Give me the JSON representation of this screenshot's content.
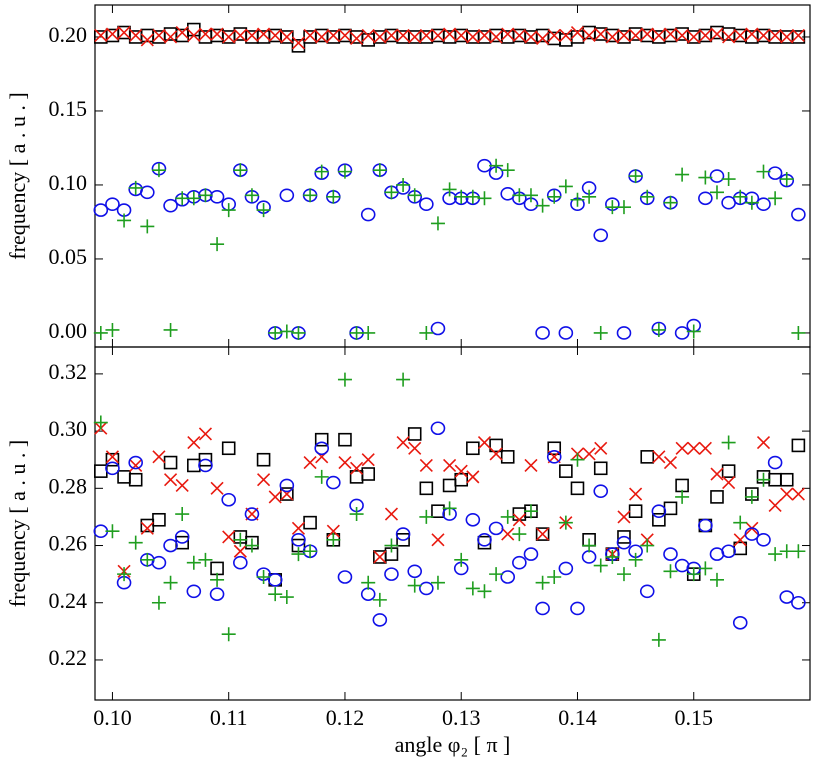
{
  "chart_data": [
    {
      "type": "scatter",
      "ylabel": "frequency [ a . u . ]",
      "x": [
        0.099,
        0.1,
        0.101,
        0.102,
        0.103,
        0.104,
        0.105,
        0.106,
        0.107,
        0.108,
        0.109,
        0.11,
        0.111,
        0.112,
        0.113,
        0.114,
        0.115,
        0.116,
        0.117,
        0.118,
        0.119,
        0.12,
        0.121,
        0.122,
        0.123,
        0.124,
        0.125,
        0.126,
        0.127,
        0.128,
        0.129,
        0.13,
        0.131,
        0.132,
        0.133,
        0.134,
        0.135,
        0.136,
        0.137,
        0.138,
        0.139,
        0.14,
        0.141,
        0.142,
        0.143,
        0.144,
        0.145,
        0.146,
        0.147,
        0.148,
        0.149,
        0.15,
        0.151,
        0.152,
        0.153,
        0.154,
        0.155,
        0.156,
        0.157,
        0.158,
        0.159
      ],
      "xlim": [
        0.0985,
        0.16
      ],
      "ylim": [
        -0.0095,
        0.2216
      ],
      "yticks": [
        {
          "value": 0,
          "label": "0.00"
        },
        0.05,
        {
          "value": 0.1,
          "label": "0.10"
        },
        0.15,
        {
          "value": 0.2,
          "label": "0.20"
        }
      ],
      "series": [
        {
          "marker": "square",
          "color": "#000000",
          "values": [
            0.2,
            0.201,
            0.203,
            0.2,
            0.201,
            0.2,
            0.202,
            0.201,
            0.205,
            0.2,
            0.201,
            0.2,
            0.202,
            0.2,
            0.2,
            0.201,
            0.2,
            0.194,
            0.2,
            0.201,
            0.2,
            0.201,
            0.2,
            0.198,
            0.2,
            0.201,
            0.2,
            0.2,
            0.2,
            0.201,
            0.2,
            0.201,
            0.2,
            0.2,
            0.201,
            0.2,
            0.201,
            0.2,
            0.201,
            0.199,
            0.198,
            0.2,
            0.203,
            0.202,
            0.201,
            0.2,
            0.202,
            0.201,
            0.2,
            0.201,
            0.202,
            0.2,
            0.201,
            0.203,
            0.202,
            0.201,
            0.2,
            0.201,
            0.2,
            0.2,
            0.2
          ]
        },
        {
          "marker": "x",
          "color": "#e8190f",
          "values": [
            0.201,
            0.202,
            0.203,
            0.201,
            0.198,
            0.201,
            0.2,
            0.203,
            0.201,
            0.202,
            0.202,
            0.2,
            0.201,
            0.201,
            0.202,
            0.201,
            0.2,
            0.196,
            0.201,
            0.2,
            0.201,
            0.201,
            0.199,
            0.201,
            0.2,
            0.201,
            0.201,
            0.2,
            0.201,
            0.201,
            0.202,
            0.201,
            0.2,
            0.201,
            0.2,
            0.202,
            0.201,
            0.2,
            0.199,
            0.201,
            0.201,
            0.203,
            0.201,
            0.202,
            0.2,
            0.201,
            0.201,
            0.202,
            0.201,
            0.202,
            0.201,
            0.2,
            0.201,
            0.202,
            0.2,
            0.201,
            0.202,
            0.201,
            0.201,
            0.2,
            0.201
          ]
        },
        {
          "marker": "circle",
          "color": "#1010e8",
          "values": [
            0.083,
            0.087,
            0.083,
            0.097,
            0.095,
            0.111,
            0.086,
            0.09,
            0.092,
            0.093,
            0.092,
            0.087,
            0.11,
            0.092,
            0.085,
            0.0,
            0.093,
            0.0,
            0.093,
            0.108,
            0.092,
            0.11,
            0.0,
            0.08,
            0.11,
            0.095,
            0.098,
            0.092,
            0.087,
            0.003,
            0.091,
            0.091,
            0.091,
            0.113,
            0.108,
            0.094,
            0.091,
            0.087,
            0.0,
            0.093,
            0.0,
            0.087,
            0.098,
            0.066,
            0.087,
            0.0,
            0.106,
            0.091,
            0.003,
            0.088,
            0.0,
            0.005,
            0.091,
            0.106,
            0.088,
            0.091,
            0.091,
            0.087,
            0.108,
            0.103,
            0.08
          ]
        },
        {
          "marker": "plus",
          "color": "#1f9e1f",
          "values": [
            0.0,
            0.002,
            0.076,
            0.098,
            0.072,
            0.11,
            0.002,
            0.091,
            0.091,
            0.093,
            0.06,
            0.083,
            0.11,
            0.093,
            0.083,
            0.0,
            0.001,
            0.0,
            0.093,
            0.109,
            0.092,
            0.109,
            0.0,
            0.0,
            0.11,
            0.095,
            0.1,
            0.093,
            0.0,
            0.074,
            0.097,
            0.092,
            0.092,
            0.091,
            0.113,
            0.11,
            0.093,
            0.093,
            0.086,
            0.092,
            0.099,
            0.09,
            0.092,
            0.0,
            0.085,
            0.085,
            0.106,
            0.092,
            0.002,
            0.088,
            0.107,
            0.001,
            0.105,
            0.095,
            0.104,
            0.092,
            0.088,
            0.109,
            0.091,
            0.104,
            0.0
          ]
        }
      ]
    },
    {
      "type": "scatter",
      "ylabel": "frequency [ a . u . ]",
      "xlabel": "angle φ₂ [ π ]",
      "x": [
        0.099,
        0.1,
        0.101,
        0.102,
        0.103,
        0.104,
        0.105,
        0.106,
        0.107,
        0.108,
        0.109,
        0.11,
        0.111,
        0.112,
        0.113,
        0.114,
        0.115,
        0.116,
        0.117,
        0.118,
        0.119,
        0.12,
        0.121,
        0.122,
        0.123,
        0.124,
        0.125,
        0.126,
        0.127,
        0.128,
        0.129,
        0.13,
        0.131,
        0.132,
        0.133,
        0.134,
        0.135,
        0.136,
        0.137,
        0.138,
        0.139,
        0.14,
        0.141,
        0.142,
        0.143,
        0.144,
        0.145,
        0.146,
        0.147,
        0.148,
        0.149,
        0.15,
        0.151,
        0.152,
        0.153,
        0.154,
        0.155,
        0.156,
        0.157,
        0.158,
        0.159
      ],
      "xlim": [
        0.0985,
        0.16
      ],
      "xticks": [
        {
          "value": 0.1,
          "label": "0.10"
        },
        0.11,
        0.12,
        0.13,
        0.14,
        0.15
      ],
      "ylim": [
        0.206,
        0.3294
      ],
      "yticks": [
        0.22,
        0.24,
        0.26,
        0.28,
        {
          "value": 0.3,
          "label": "0.30"
        },
        0.32
      ],
      "series": [
        {
          "marker": "square",
          "color": "#000000",
          "values": [
            0.286,
            0.29,
            0.284,
            0.283,
            0.267,
            0.269,
            0.289,
            0.261,
            0.288,
            0.29,
            0.252,
            0.294,
            0.263,
            0.261,
            0.29,
            0.248,
            0.278,
            0.26,
            0.268,
            0.297,
            0.262,
            0.297,
            0.284,
            0.285,
            0.256,
            0.257,
            0.262,
            0.299,
            0.28,
            0.272,
            0.281,
            0.283,
            0.294,
            0.261,
            0.295,
            0.291,
            0.271,
            0.272,
            0.264,
            0.294,
            0.286,
            0.28,
            0.262,
            0.287,
            0.257,
            0.263,
            0.272,
            0.291,
            0.269,
            0.273,
            0.281,
            0.25,
            0.267,
            0.277,
            0.286,
            0.259,
            0.278,
            0.284,
            0.283,
            0.283,
            0.295
          ]
        },
        {
          "marker": "x",
          "color": "#e8190f",
          "values": [
            0.301,
            0.291,
            0.251,
            0.288,
            0.266,
            0.291,
            0.283,
            0.281,
            0.296,
            0.299,
            0.28,
            0.263,
            0.258,
            0.271,
            0.283,
            0.277,
            0.278,
            0.266,
            0.289,
            0.291,
            0.265,
            0.289,
            0.287,
            0.29,
            0.256,
            0.271,
            0.296,
            0.294,
            0.288,
            0.262,
            0.288,
            0.286,
            0.284,
            0.296,
            0.292,
            0.264,
            0.269,
            0.288,
            0.264,
            0.291,
            0.268,
            0.292,
            0.292,
            0.294,
            0.257,
            0.27,
            0.278,
            0.262,
            0.291,
            0.289,
            0.294,
            0.294,
            0.294,
            0.285,
            0.282,
            0.262,
            0.266,
            0.296,
            0.274,
            0.278,
            0.278
          ]
        },
        {
          "marker": "circle",
          "color": "#1010e8",
          "values": [
            0.265,
            0.287,
            0.247,
            0.289,
            0.255,
            0.254,
            0.26,
            0.263,
            0.244,
            0.288,
            0.243,
            0.276,
            0.254,
            0.271,
            0.25,
            0.248,
            0.281,
            0.262,
            0.258,
            0.294,
            0.282,
            0.249,
            0.274,
            0.243,
            0.234,
            0.25,
            0.264,
            0.251,
            0.245,
            0.301,
            0.271,
            0.252,
            0.269,
            0.262,
            0.266,
            0.249,
            0.254,
            0.257,
            0.238,
            0.291,
            0.252,
            0.238,
            0.256,
            0.279,
            0.257,
            0.261,
            0.258,
            0.244,
            0.272,
            0.257,
            0.253,
            0.252,
            0.267,
            0.257,
            0.258,
            0.233,
            0.264,
            0.262,
            0.289,
            0.242,
            0.24
          ]
        },
        {
          "marker": "plus",
          "color": "#1f9e1f",
          "values": [
            0.303,
            0.265,
            0.25,
            0.261,
            0.255,
            0.24,
            0.247,
            0.271,
            0.254,
            0.255,
            0.248,
            0.229,
            0.262,
            0.26,
            0.249,
            0.243,
            0.242,
            0.257,
            0.258,
            0.284,
            0.262,
            0.318,
            0.271,
            0.247,
            0.241,
            0.26,
            0.318,
            0.246,
            0.27,
            0.247,
            0.273,
            0.255,
            0.245,
            0.244,
            0.25,
            0.27,
            0.264,
            0.272,
            0.247,
            0.249,
            0.268,
            0.29,
            0.26,
            0.253,
            0.256,
            0.25,
            0.255,
            0.26,
            0.227,
            0.251,
            0.277,
            0.25,
            0.252,
            0.248,
            0.296,
            0.268,
            0.277,
            0.283,
            0.257,
            0.258,
            0.258
          ]
        }
      ]
    }
  ]
}
